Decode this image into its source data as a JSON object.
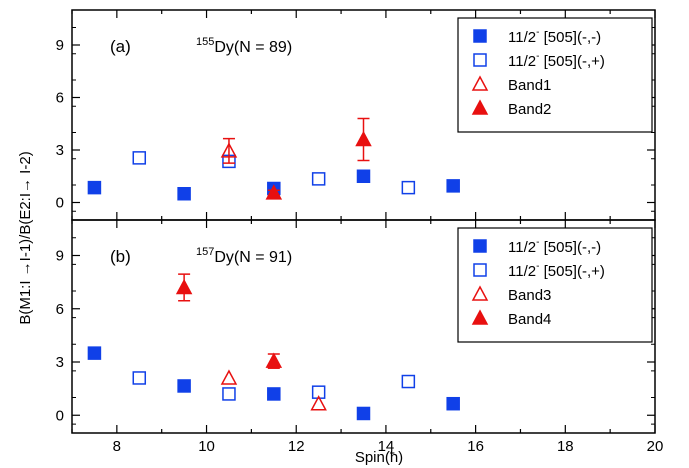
{
  "chart_data": [
    {
      "type": "scatter",
      "panel_label": "(a)",
      "nucleus": {
        "mass": "155",
        "text": "Dy(N = 89)"
      },
      "xlim": [
        7,
        20
      ],
      "ylim": [
        -1,
        11
      ],
      "yticks": [
        0,
        3,
        6,
        9
      ],
      "xticks": [
        8,
        10,
        12,
        14,
        16,
        18,
        20
      ],
      "legend_position": "top-right",
      "series": [
        {
          "name": "11/2- [505](-,-)",
          "label_main": "11/2",
          "label_sup": "-",
          "label_rest": " [505](-,-)",
          "marker": "square-filled",
          "color": "#1040e8",
          "x": [
            7.5,
            9.5,
            11.5,
            13.5,
            15.5
          ],
          "y": [
            0.85,
            0.5,
            0.8,
            1.5,
            0.95
          ]
        },
        {
          "name": "11/2- [505](-,+)",
          "label_main": "11/2",
          "label_sup": "-",
          "label_rest": " [505](-,+)",
          "marker": "square-open",
          "color": "#1040e8",
          "x": [
            8.5,
            10.5,
            12.5,
            14.5
          ],
          "y": [
            2.55,
            2.35,
            1.35,
            0.85
          ]
        },
        {
          "name": "Band1",
          "label_main": "Band1",
          "label_sup": "",
          "label_rest": "",
          "marker": "triangle-open",
          "color": "#e81010",
          "x": [
            10.5
          ],
          "y": [
            2.95
          ],
          "err": [
            0.7
          ]
        },
        {
          "name": "Band2",
          "label_main": "Band2",
          "label_sup": "",
          "label_rest": "",
          "marker": "triangle-filled",
          "color": "#e81010",
          "x": [
            11.5,
            13.5
          ],
          "y": [
            0.55,
            3.6
          ],
          "err": [
            0.15,
            1.2
          ]
        }
      ]
    },
    {
      "type": "scatter",
      "panel_label": "(b)",
      "nucleus": {
        "mass": "157",
        "text": "Dy(N = 91)"
      },
      "xlim": [
        7,
        20
      ],
      "ylim": [
        -1,
        11
      ],
      "yticks": [
        0,
        3,
        6,
        9
      ],
      "xticks": [
        8,
        10,
        12,
        14,
        16,
        18,
        20
      ],
      "legend_position": "top-right",
      "series": [
        {
          "name": "11/2- [505](-,-)",
          "label_main": "11/2",
          "label_sup": "-",
          "label_rest": " [505](-,-)",
          "marker": "square-filled",
          "color": "#1040e8",
          "x": [
            7.5,
            9.5,
            11.5,
            13.5,
            15.5
          ],
          "y": [
            3.5,
            1.65,
            1.2,
            0.1,
            0.65
          ]
        },
        {
          "name": "11/2- [505](-,+)",
          "label_main": "11/2",
          "label_sup": "-",
          "label_rest": " [505](-,+)",
          "marker": "square-open",
          "color": "#1040e8",
          "x": [
            8.5,
            10.5,
            12.5,
            14.5
          ],
          "y": [
            2.1,
            1.2,
            1.3,
            1.9
          ]
        },
        {
          "name": "Band3",
          "label_main": "Band3",
          "label_sup": "",
          "label_rest": "",
          "marker": "triangle-open",
          "color": "#e81010",
          "x": [
            10.5,
            12.5
          ],
          "y": [
            2.1,
            0.65
          ]
        },
        {
          "name": "Band4",
          "label_main": "Band4",
          "label_sup": "",
          "label_rest": "",
          "marker": "triangle-filled",
          "color": "#e81010",
          "x": [
            9.5,
            11.5
          ],
          "y": [
            7.2,
            3.05
          ],
          "err": [
            0.75,
            0.4
          ]
        }
      ]
    }
  ],
  "axes": {
    "xlabel": "Spin(ħ)",
    "ylabel": "B(M1:I →I-1)/B(E2:I→ I-2)"
  }
}
